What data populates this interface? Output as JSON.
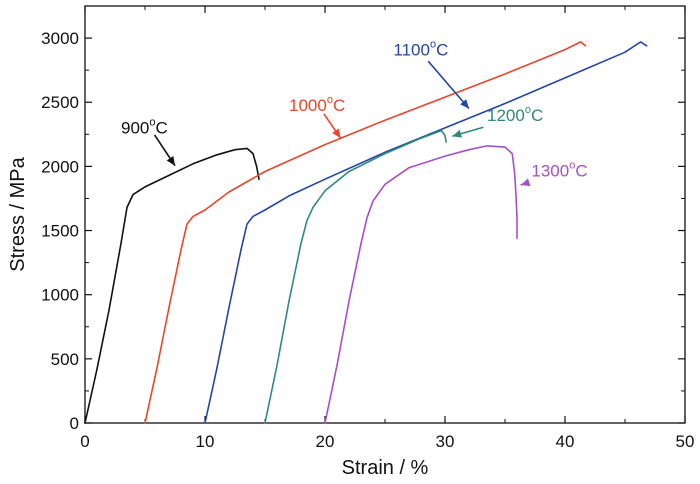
{
  "chart_data": {
    "type": "line",
    "title": "",
    "xlabel": "Strain / %",
    "ylabel": "Stress / MPa",
    "xlim": [
      0,
      50
    ],
    "ylim": [
      0,
      3250
    ],
    "xticks": [
      0,
      10,
      20,
      30,
      40,
      50
    ],
    "yticks": [
      0,
      500,
      1000,
      1500,
      2000,
      2500,
      3000
    ],
    "grid": false,
    "legend": "none",
    "series": [
      {
        "name": "900°C",
        "color": "#111111",
        "label": {
          "main": "900",
          "sup": "o",
          "unit": "C"
        },
        "x": [
          0,
          1,
          2,
          3,
          3.5,
          4,
          5,
          7,
          9,
          11,
          12.5,
          13.5,
          14,
          14.3,
          14.5
        ],
        "y": [
          0,
          420,
          880,
          1400,
          1680,
          1780,
          1840,
          1930,
          2020,
          2090,
          2130,
          2140,
          2100,
          2000,
          1900
        ]
      },
      {
        "name": "1000°C",
        "color": "#E8462A",
        "label": {
          "main": "1000",
          "sup": "o",
          "unit": "C"
        },
        "x": [
          5,
          6,
          7,
          8,
          8.5,
          9,
          10,
          12,
          15,
          20,
          25,
          30,
          35,
          40,
          41.3,
          41.7
        ],
        "y": [
          0,
          430,
          900,
          1350,
          1550,
          1610,
          1660,
          1800,
          1960,
          2170,
          2360,
          2540,
          2720,
          2910,
          2970,
          2940
        ]
      },
      {
        "name": "1100°C",
        "color": "#2346A6",
        "label": {
          "main": "1100",
          "sup": "o",
          "unit": "C"
        },
        "x": [
          10,
          11,
          12,
          13,
          13.5,
          14,
          15,
          17,
          20,
          25,
          30,
          35,
          40,
          45,
          46.3,
          46.8
        ],
        "y": [
          0,
          430,
          900,
          1350,
          1550,
          1610,
          1660,
          1770,
          1900,
          2110,
          2300,
          2490,
          2690,
          2890,
          2970,
          2940
        ]
      },
      {
        "name": "1200°C",
        "color": "#2E8B7A",
        "label": {
          "main": "1200",
          "sup": "o",
          "unit": "C"
        },
        "x": [
          15,
          16,
          17,
          18,
          18.5,
          19,
          20,
          22,
          25,
          28,
          29.7,
          30,
          30.1
        ],
        "y": [
          0,
          450,
          950,
          1400,
          1580,
          1680,
          1810,
          1960,
          2100,
          2220,
          2280,
          2240,
          2190
        ]
      },
      {
        "name": "1300°C",
        "color": "#A64FC8",
        "label": {
          "main": "1300",
          "sup": "o",
          "unit": "C"
        },
        "x": [
          20,
          21,
          22,
          23,
          23.5,
          24,
          25,
          27,
          30,
          32,
          33.5,
          35,
          35.6,
          35.8,
          35.9,
          36,
          36
        ],
        "y": [
          0,
          450,
          950,
          1400,
          1600,
          1730,
          1860,
          1990,
          2080,
          2130,
          2160,
          2150,
          2100,
          1950,
          1800,
          1600,
          1440
        ]
      }
    ]
  }
}
